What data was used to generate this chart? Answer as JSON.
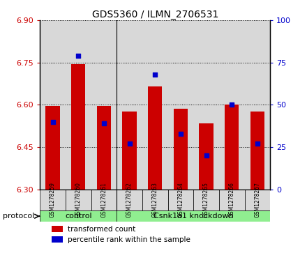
{
  "title": "GDS5360 / ILMN_2706531",
  "samples": [
    "GSM1278259",
    "GSM1278260",
    "GSM1278261",
    "GSM1278262",
    "GSM1278263",
    "GSM1278264",
    "GSM1278265",
    "GSM1278266",
    "GSM1278267"
  ],
  "transformed_counts": [
    6.595,
    6.745,
    6.595,
    6.575,
    6.665,
    6.585,
    6.535,
    6.6,
    6.575
  ],
  "percentile_ranks": [
    40,
    79,
    39,
    27,
    68,
    33,
    20,
    50,
    27
  ],
  "baseline": 6.3,
  "ylim_left": [
    6.3,
    6.9
  ],
  "ylim_right": [
    0,
    100
  ],
  "yticks_left": [
    6.3,
    6.45,
    6.6,
    6.75,
    6.9
  ],
  "yticks_right": [
    0,
    25,
    50,
    75,
    100
  ],
  "bar_color": "#cc0000",
  "dot_color": "#0000cc",
  "control_count": 3,
  "knockdown_count": 6,
  "group_labels": [
    "control",
    "Csnk1a1 knockdown"
  ],
  "group_color": "#90ee90",
  "protocol_label": "protocol",
  "legend_items": [
    {
      "label": "transformed count",
      "color": "#cc0000"
    },
    {
      "label": "percentile rank within the sample",
      "color": "#0000cc"
    }
  ],
  "tick_label_color_left": "#cc0000",
  "tick_label_color_right": "#0000cc",
  "bar_width": 0.55,
  "grid_color": "black",
  "bg_color": "#d8d8d8"
}
